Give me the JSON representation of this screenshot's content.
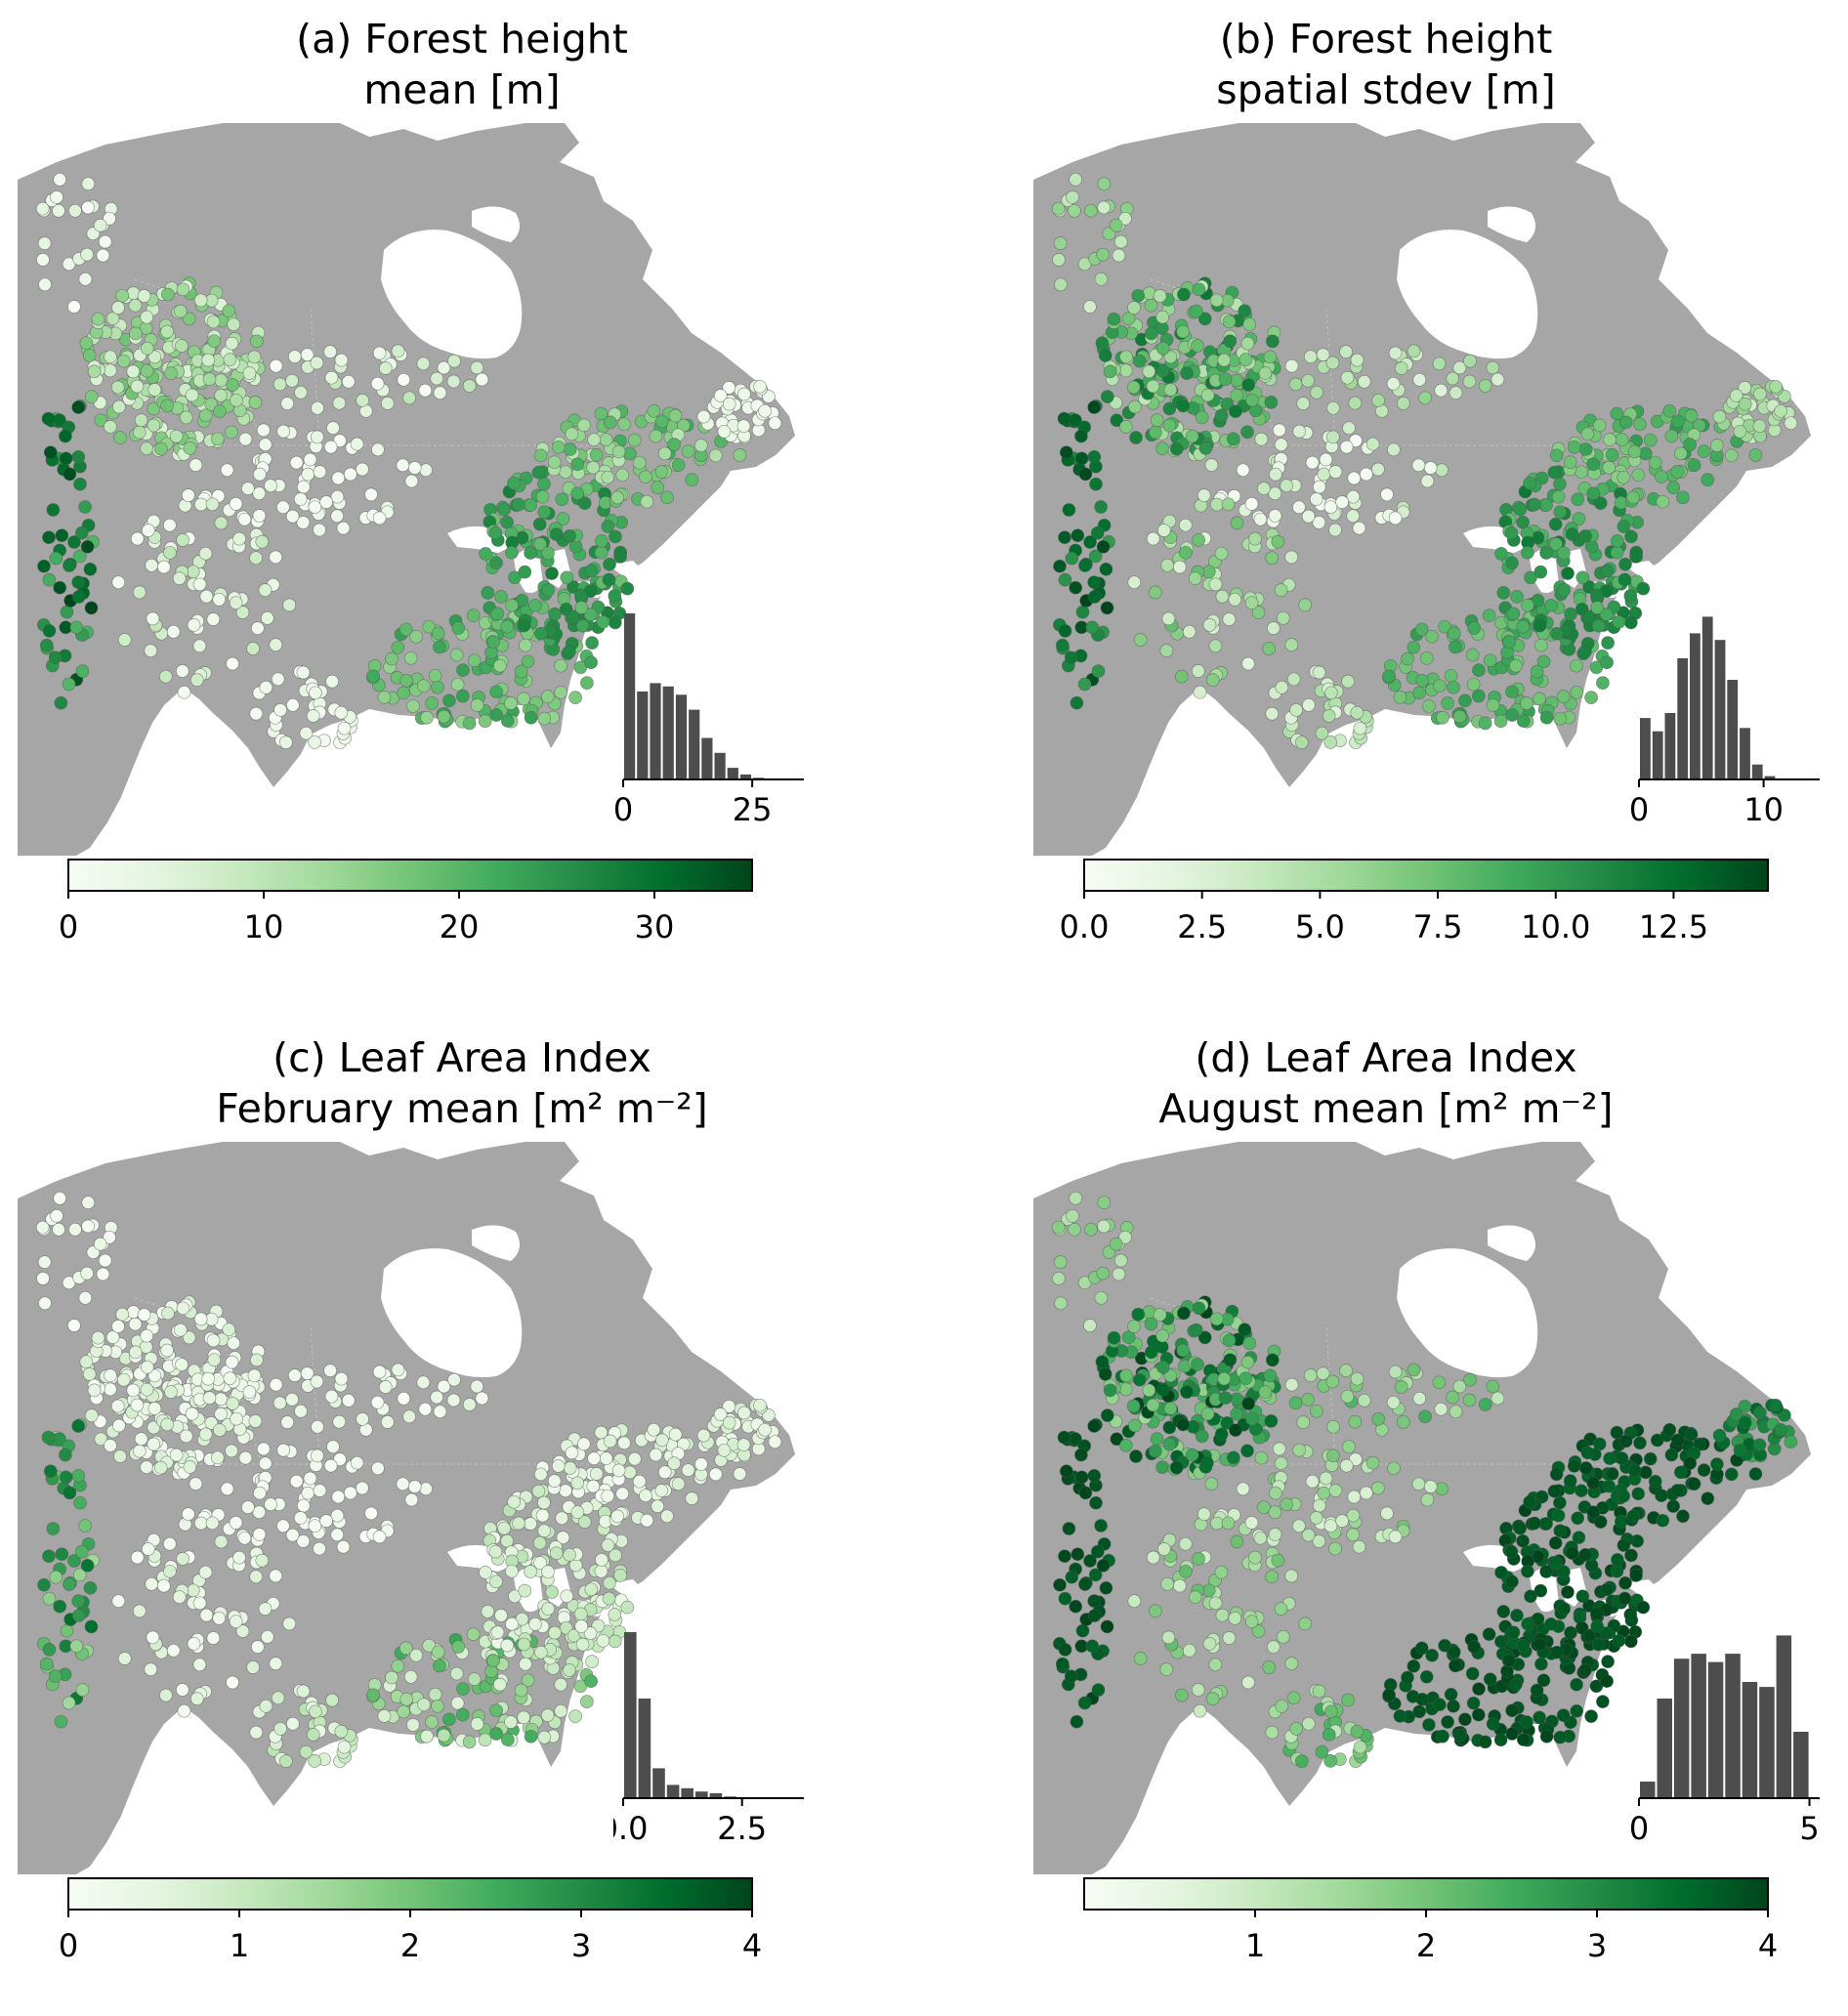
{
  "panels": [
    {
      "id": "a",
      "title_line1": "(a) Forest height",
      "title_line2": "mean [m]",
      "colorbar": {
        "min": 0,
        "max": 35,
        "ticks": [
          0,
          10,
          20,
          30
        ],
        "tick_labels": [
          "0",
          "10",
          "20",
          "30"
        ]
      },
      "histogram": {
        "bin_width": 2.5,
        "range": [
          0,
          35
        ],
        "counts": [
          1.0,
          0.53,
          0.58,
          0.56,
          0.51,
          0.42,
          0.25,
          0.16,
          0.07,
          0.03,
          0.01
        ],
        "ticks": [
          0,
          25
        ],
        "tick_labels": [
          "0",
          "25"
        ]
      },
      "points": {
        "west_coast": {
          "min": 20,
          "max": 35
        },
        "rockies_north": {
          "min": 5,
          "max": 18
        },
        "great_plains": {
          "min": 0,
          "max": 4
        },
        "southwest": {
          "min": 0,
          "max": 10
        },
        "boreal": {
          "min": 0,
          "max": 10
        },
        "southeast": {
          "min": 14,
          "max": 24
        },
        "appalachians": {
          "min": 18,
          "max": 28
        },
        "northeast": {
          "min": 10,
          "max": 22
        },
        "newfoundland": {
          "min": 0,
          "max": 4
        },
        "texas": {
          "min": 0,
          "max": 4
        },
        "alaska": {
          "min": 0,
          "max": 6
        }
      }
    },
    {
      "id": "b",
      "title_line1": "(b) Forest height",
      "title_line2": "spatial stdev [m]",
      "colorbar": {
        "min": 0,
        "max": 14.5,
        "ticks": [
          0,
          2.5,
          5,
          7.5,
          10,
          12.5
        ],
        "tick_labels": [
          "0.0",
          "2.5",
          "5.0",
          "7.5",
          "10.0",
          "12.5"
        ]
      },
      "histogram": {
        "bin_width": 1,
        "range": [
          0,
          14.5
        ],
        "counts": [
          0.37,
          0.29,
          0.4,
          0.73,
          0.88,
          0.98,
          0.84,
          0.6,
          0.31,
          0.09,
          0.02
        ],
        "ticks": [
          0,
          10
        ],
        "tick_labels": [
          "0",
          "10"
        ]
      },
      "points": {
        "west_coast": {
          "min": 10,
          "max": 14.5
        },
        "rockies_north": {
          "min": 4,
          "max": 12
        },
        "great_plains": {
          "min": 0,
          "max": 4
        },
        "southwest": {
          "min": 2,
          "max": 8
        },
        "boreal": {
          "min": 2,
          "max": 6
        },
        "southeast": {
          "min": 7,
          "max": 10
        },
        "appalachians": {
          "min": 8,
          "max": 12
        },
        "northeast": {
          "min": 6,
          "max": 10
        },
        "newfoundland": {
          "min": 3,
          "max": 6
        },
        "texas": {
          "min": 2,
          "max": 5
        },
        "alaska": {
          "min": 3,
          "max": 7
        }
      }
    },
    {
      "id": "c",
      "title_line1": "(c) Leaf Area Index",
      "title_line2": "February mean [m² m⁻²]",
      "colorbar": {
        "min": 0,
        "max": 4,
        "ticks": [
          0,
          1,
          2,
          3,
          4
        ],
        "tick_labels": [
          "0",
          "1",
          "2",
          "3",
          "4"
        ]
      },
      "histogram": {
        "bin_width": 0.3,
        "range": [
          0,
          3.8
        ],
        "counts": [
          1.0,
          0.6,
          0.18,
          0.08,
          0.06,
          0.04,
          0.03,
          0.01
        ],
        "ticks": [
          0,
          2.5
        ],
        "tick_labels": [
          "0.0",
          "2.5"
        ]
      },
      "points": {
        "west_coast": {
          "min": 1.5,
          "max": 3.5
        },
        "rockies_north": {
          "min": 0,
          "max": 0.8
        },
        "great_plains": {
          "min": 0,
          "max": 0.3
        },
        "southwest": {
          "min": 0,
          "max": 0.8
        },
        "boreal": {
          "min": 0,
          "max": 0.6
        },
        "southeast": {
          "min": 0.6,
          "max": 2.6
        },
        "appalachians": {
          "min": 0.3,
          "max": 1.2
        },
        "northeast": {
          "min": 0.1,
          "max": 0.8
        },
        "newfoundland": {
          "min": 0.2,
          "max": 0.8
        },
        "texas": {
          "min": 0.3,
          "max": 1.2
        },
        "alaska": {
          "min": 0,
          "max": 0.4
        }
      }
    },
    {
      "id": "d",
      "title_line1": "(d) Leaf Area Index",
      "title_line2": "August mean [m² m⁻²]",
      "colorbar": {
        "min": 0,
        "max": 4,
        "ticks": [
          1,
          2,
          3,
          4
        ],
        "tick_labels": [
          "1",
          "2",
          "3",
          "4"
        ]
      },
      "histogram": {
        "bin_width": 0.5,
        "range": [
          0,
          5.3
        ],
        "counts": [
          0.1,
          0.6,
          0.84,
          0.87,
          0.82,
          0.87,
          0.7,
          0.67,
          0.98,
          0.4
        ],
        "ticks": [
          0,
          5
        ],
        "tick_labels": [
          "0",
          "5"
        ]
      },
      "points": {
        "west_coast": {
          "min": 3.6,
          "max": 4
        },
        "rockies_north": {
          "min": 1.5,
          "max": 4
        },
        "great_plains": {
          "min": 0.6,
          "max": 2
        },
        "southwest": {
          "min": 0.8,
          "max": 2.2
        },
        "boreal": {
          "min": 0.8,
          "max": 2.5
        },
        "southeast": {
          "min": 3.7,
          "max": 4
        },
        "appalachians": {
          "min": 3.6,
          "max": 4
        },
        "northeast": {
          "min": 3.6,
          "max": 4
        },
        "newfoundland": {
          "min": 2.5,
          "max": 3.6
        },
        "texas": {
          "min": 1,
          "max": 2.5
        },
        "alaska": {
          "min": 1,
          "max": 2
        }
      }
    }
  ],
  "colors": {
    "land": "#a6a6a6",
    "hist_bar": "#4d4d4d",
    "cmap": [
      "#f7fcf5",
      "#e5f5e0",
      "#c7e9c0",
      "#a1d99b",
      "#74c476",
      "#41ab5d",
      "#238b45",
      "#006d2c",
      "#00441b"
    ]
  }
}
